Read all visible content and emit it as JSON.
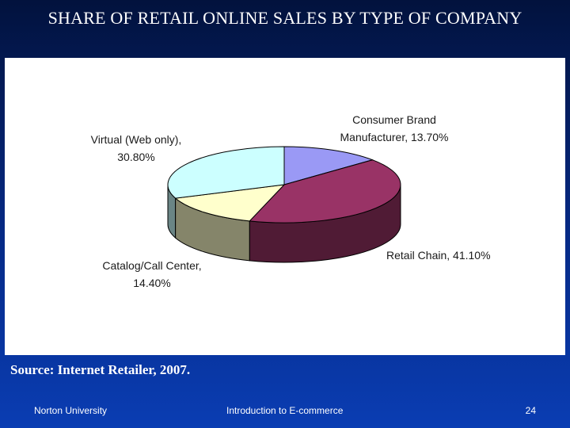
{
  "slide": {
    "title": "SHARE OF RETAIL ONLINE SALES BY TYPE OF COMPANY",
    "source": "Source: Internet Retailer, 2007."
  },
  "footer": {
    "left": "Norton University",
    "center": "Introduction to E-commerce",
    "page_number": "24"
  },
  "chart_data": {
    "type": "pie",
    "title": "",
    "style": "3d",
    "slices": [
      {
        "label": "Consumer Brand Manufacturer",
        "value": 13.7,
        "display": "Consumer Brand Manufacturer, 13.70%",
        "color": "#9a99f5"
      },
      {
        "label": "Retail Chain",
        "value": 41.1,
        "display": "Retail Chain, 41.10%",
        "color": "#993366"
      },
      {
        "label": "Catalog/Call Center",
        "value": 14.4,
        "display": "Catalog/Call Center, 14.40%",
        "color": "#ffffcc"
      },
      {
        "label": "Virtual (Web only)",
        "value": 30.8,
        "display": "Virtual (Web only), 30.80%",
        "color": "#ccffff"
      }
    ]
  }
}
